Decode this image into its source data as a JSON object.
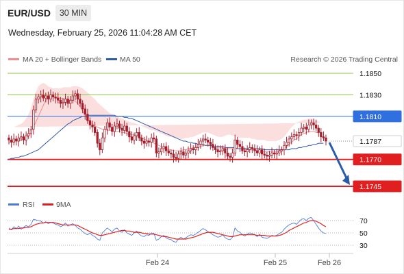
{
  "header": {
    "symbol": "EUR/USD",
    "timeframe": "30 MIN",
    "datetime": "Wednesday, February 25, 2026 11:04:28 AM CET"
  },
  "legend": {
    "ma20_label": "MA 20 + Bollinger Bands",
    "ma50_label": "MA 50",
    "research": "Research © 2026 Trading Central",
    "rsi_label": "RSI",
    "ma9_label": "9MA"
  },
  "colors": {
    "ma20": "#f28c8c",
    "ma50": "#2e5aa8",
    "bollinger_fill": "#fad4d4",
    "candle": "#a51c2a",
    "resistance": "#8bc34a",
    "pivot": "#2f6fe0",
    "support": "#e02020",
    "rsi": "#4a7ad8",
    "rsi_ma": "#e02020",
    "arrow": "#2b5aa8"
  },
  "chart_data": {
    "type": "candlestick",
    "instrument": "EUR/USD",
    "timeframe": "30 MIN",
    "price_levels": [
      {
        "label": "1.1850",
        "value": 1.185,
        "kind": "resistance"
      },
      {
        "label": "1.1830",
        "value": 1.183,
        "kind": "resistance"
      },
      {
        "label": "1.1810",
        "value": 1.181,
        "kind": "pivot"
      },
      {
        "label": "1.1787",
        "value": 1.1787,
        "kind": "last"
      },
      {
        "label": "1.1770",
        "value": 1.177,
        "kind": "support"
      },
      {
        "label": "1.1745",
        "value": 1.1745,
        "kind": "support"
      }
    ],
    "x_ticks": [
      "Feb 24",
      "Feb 25",
      "Feb 26"
    ],
    "close": [
      1.1788,
      1.1786,
      1.1789,
      1.1787,
      1.179,
      1.1791,
      1.1788,
      1.1792,
      1.1794,
      1.1798,
      1.1816,
      1.1826,
      1.1828,
      1.183,
      1.1827,
      1.1829,
      1.1826,
      1.183,
      1.1828,
      1.1827,
      1.1825,
      1.1822,
      1.1823,
      1.1826,
      1.1822,
      1.1825,
      1.1829,
      1.1831,
      1.1826,
      1.1822,
      1.1817,
      1.1812,
      1.1806,
      1.1802,
      1.18,
      1.1795,
      1.1785,
      1.1779,
      1.179,
      1.1798,
      1.1804,
      1.18,
      1.1796,
      1.1801,
      1.1803,
      1.1799,
      1.1797,
      1.1801,
      1.1796,
      1.1791,
      1.1788,
      1.1792,
      1.1795,
      1.179,
      1.1787,
      1.1785,
      1.1787,
      1.1786,
      1.179,
      1.1789,
      1.1776,
      1.1777,
      1.178,
      1.1782,
      1.1778,
      1.1776,
      1.1775,
      1.1772,
      1.1771,
      1.1775,
      1.1777,
      1.1774,
      1.1776,
      1.1778,
      1.178,
      1.1779,
      1.1781,
      1.1784,
      1.1787,
      1.1789,
      1.1788,
      1.1786,
      1.1784,
      1.1781,
      1.1779,
      1.1777,
      1.1778,
      1.178,
      1.1776,
      1.1773,
      1.1772,
      1.1776,
      1.1788,
      1.1784,
      1.1782,
      1.1778,
      1.1777,
      1.1779,
      1.1781,
      1.178,
      1.1778,
      1.1776,
      1.1779,
      1.1775,
      1.1774,
      1.1773,
      1.1774,
      1.1776,
      1.1775,
      1.1776,
      1.1778,
      1.1779,
      1.1783,
      1.1786,
      1.1789,
      1.1791,
      1.1793,
      1.1792,
      1.1795,
      1.1799,
      1.18,
      1.1798,
      1.1802,
      1.1804,
      1.1802,
      1.1799,
      1.1795,
      1.1791,
      1.179,
      1.1787
    ],
    "ma20": [
      1.1786,
      1.1786,
      1.1787,
      1.1787,
      1.1788,
      1.1788,
      1.1789,
      1.179,
      1.1792,
      1.1795,
      1.18,
      1.1805,
      1.181,
      1.1815,
      1.182,
      1.1825,
      1.1827,
      1.1828,
      1.1828,
      1.1828,
      1.1827,
      1.1827,
      1.1826,
      1.1826,
      1.1826,
      1.1825,
      1.1825,
      1.1824,
      1.1822,
      1.1819,
      1.1815,
      1.1811,
      1.1808,
      1.1805,
      1.1803,
      1.1801,
      1.18,
      1.1799,
      1.1798,
      1.1798,
      1.1797,
      1.1797,
      1.1797,
      1.1796,
      1.1796,
      1.1796,
      1.1795,
      1.1795,
      1.1794,
      1.1794,
      1.1793,
      1.1793,
      1.1792,
      1.1791,
      1.179,
      1.1789,
      1.1788,
      1.1787,
      1.1786,
      1.1785,
      1.1784,
      1.1783,
      1.1782,
      1.1781,
      1.178,
      1.1779,
      1.1779,
      1.1778,
      1.1778,
      1.1778,
      1.1778,
      1.1779,
      1.1779,
      1.178,
      1.178,
      1.1781,
      1.1781,
      1.1782,
      1.1782,
      1.1783,
      1.1783,
      1.1783,
      1.1783,
      1.1783,
      1.1782,
      1.1782,
      1.1781,
      1.1781,
      1.178,
      1.178,
      1.178,
      1.178,
      1.178,
      1.178,
      1.178,
      1.178,
      1.1779,
      1.1779,
      1.1779,
      1.1779,
      1.1779,
      1.1778,
      1.1778,
      1.1777,
      1.1777,
      1.1777,
      1.1777,
      1.1777,
      1.1777,
      1.1777,
      1.1778,
      1.1779,
      1.178,
      1.1782,
      1.1784,
      1.1786,
      1.1788,
      1.1789,
      1.1791,
      1.1793,
      1.1794,
      1.1795,
      1.1796,
      1.1796,
      1.1796,
      1.1795,
      1.1795
    ],
    "ma50": [
      1.177,
      1.1771,
      1.1771,
      1.1772,
      1.1772,
      1.1773,
      1.1773,
      1.1774,
      1.1775,
      1.1776,
      1.1777,
      1.1778,
      1.1779,
      1.1781,
      1.1783,
      1.1785,
      1.1787,
      1.1789,
      1.1791,
      1.1793,
      1.1795,
      1.1797,
      1.1799,
      1.1801,
      1.1803,
      1.1804,
      1.1806,
      1.1807,
      1.1808,
      1.1809,
      1.181,
      1.181,
      1.1811,
      1.1811,
      1.1811,
      1.1811,
      1.1811,
      1.1811,
      1.1811,
      1.1811,
      1.1811,
      1.1811,
      1.1811,
      1.1811,
      1.181,
      1.181,
      1.181,
      1.1809,
      1.1809,
      1.1808,
      1.1808,
      1.1807,
      1.1806,
      1.1805,
      1.1804,
      1.1803,
      1.1802,
      1.1801,
      1.18,
      1.1799,
      1.1798,
      1.1797,
      1.1796,
      1.1795,
      1.1794,
      1.1793,
      1.1792,
      1.1791,
      1.179,
      1.1789,
      1.1788,
      1.1787,
      1.1787,
      1.1786,
      1.1786,
      1.1785,
      1.1785,
      1.1784,
      1.1784,
      1.1784,
      1.1783,
      1.1783,
      1.1783,
      1.1782,
      1.1782,
      1.1782,
      1.1782,
      1.1782,
      1.1781,
      1.1781,
      1.1781,
      1.1781,
      1.1781,
      1.178,
      1.178,
      1.178,
      1.178,
      1.178,
      1.178,
      1.178,
      1.178,
      1.178,
      1.178,
      1.178,
      1.1779,
      1.1779,
      1.1779,
      1.1779,
      1.1779,
      1.1779,
      1.1779,
      1.1779,
      1.1779,
      1.1779,
      1.1779,
      1.178,
      1.178,
      1.178,
      1.1781,
      1.1781,
      1.1782,
      1.1782,
      1.1783,
      1.1783,
      1.1784,
      1.1784,
      1.1785,
      1.1785,
      1.1785
    ],
    "bollinger_upper": [
      1.18,
      1.18,
      1.18,
      1.1801,
      1.1802,
      1.1803,
      1.1805,
      1.1808,
      1.1812,
      1.1818,
      1.1826,
      1.1833,
      1.1838,
      1.184,
      1.1841,
      1.184,
      1.1838,
      1.1837,
      1.1836,
      1.1836,
      1.1836,
      1.1836,
      1.1837,
      1.1837,
      1.1837,
      1.1837,
      1.1838,
      1.1838,
      1.1838,
      1.1837,
      1.1836,
      1.1834,
      1.1832,
      1.183,
      1.1828,
      1.1826,
      1.1823,
      1.1821,
      1.1819,
      1.1817,
      1.1815,
      1.1813,
      1.1812,
      1.1811,
      1.181,
      1.1809,
      1.1808,
      1.1807,
      1.1806,
      1.1805,
      1.1804,
      1.1804,
      1.1803,
      1.1802,
      1.1801,
      1.18,
      1.1799,
      1.1798,
      1.1797,
      1.1797,
      1.1796,
      1.1795,
      1.1794,
      1.1793,
      1.1792,
      1.1791,
      1.1791,
      1.179,
      1.179,
      1.179,
      1.1789,
      1.1789,
      1.179,
      1.179,
      1.1791,
      1.1791,
      1.1792,
      1.1793,
      1.1794,
      1.1795,
      1.1795,
      1.1795,
      1.1794,
      1.1793,
      1.1792,
      1.1791,
      1.1791,
      1.1791,
      1.1792,
      1.1793,
      1.1793,
      1.1792,
      1.1792,
      1.1791,
      1.179,
      1.179,
      1.179,
      1.179,
      1.179,
      1.1789,
      1.1789,
      1.1788,
      1.1788,
      1.1788,
      1.1788,
      1.1787,
      1.1787,
      1.1787,
      1.1787,
      1.1787,
      1.1788,
      1.1789,
      1.1791,
      1.1794,
      1.1797,
      1.18,
      1.1802,
      1.1804,
      1.1805,
      1.1806,
      1.1807,
      1.1807,
      1.1808,
      1.1808,
      1.1807,
      1.1806,
      1.1805,
      1.1804
    ],
    "bollinger_lower": [
      1.1771,
      1.1771,
      1.1772,
      1.1772,
      1.1772,
      1.1772,
      1.1772,
      1.1772,
      1.1771,
      1.177,
      1.177,
      1.1771,
      1.1773,
      1.1776,
      1.1781,
      1.1786,
      1.1792,
      1.1798,
      1.1804,
      1.1808,
      1.1812,
      1.1815,
      1.1814,
      1.1813,
      1.1812,
      1.1811,
      1.1809,
      1.1806,
      1.1802,
      1.1797,
      1.1791,
      1.1786,
      1.1782,
      1.1779,
      1.1776,
      1.1774,
      1.1773,
      1.1773,
      1.1774,
      1.1775,
      1.1776,
      1.1777,
      1.1778,
      1.1779,
      1.178,
      1.178,
      1.178,
      1.178,
      1.178,
      1.178,
      1.1779,
      1.1778,
      1.1777,
      1.1776,
      1.1775,
      1.1774,
      1.1773,
      1.1772,
      1.1772,
      1.1771,
      1.1771,
      1.177,
      1.177,
      1.1769,
      1.1769,
      1.1768,
      1.1768,
      1.1768,
      1.1768,
      1.1768,
      1.1768,
      1.1769,
      1.1769,
      1.177,
      1.177,
      1.1771,
      1.1771,
      1.1772,
      1.1772,
      1.1772,
      1.1772,
      1.1772,
      1.1772,
      1.1772,
      1.1772,
      1.1772,
      1.1772,
      1.1771,
      1.177,
      1.1769,
      1.1769,
      1.1769,
      1.1769,
      1.1769,
      1.1769,
      1.177,
      1.177,
      1.177,
      1.177,
      1.177,
      1.177,
      1.1769,
      1.1769,
      1.1768,
      1.1768,
      1.1768,
      1.1768,
      1.1768,
      1.1768,
      1.1768,
      1.1768,
      1.1768,
      1.1768,
      1.1769,
      1.177,
      1.1771,
      1.1772,
      1.1773,
      1.1774,
      1.1776,
      1.1778,
      1.178,
      1.1781,
      1.1782,
      1.1783,
      1.1784,
      1.1785,
      1.1785
    ],
    "forecast": {
      "from": 1.1787,
      "to": 1.1745
    },
    "rsi": {
      "levels": [
        70,
        50,
        30
      ],
      "rsi": [
        58,
        55,
        60,
        57,
        61,
        56,
        59,
        62,
        60,
        64,
        72,
        71,
        70,
        69,
        66,
        68,
        65,
        67,
        66,
        64,
        63,
        60,
        62,
        66,
        61,
        63,
        65,
        62,
        58,
        56,
        52,
        49,
        47,
        50,
        46,
        44,
        40,
        38,
        50,
        54,
        58,
        55,
        52,
        56,
        58,
        53,
        51,
        55,
        50,
        48,
        46,
        50,
        53,
        48,
        45,
        44,
        47,
        46,
        50,
        49,
        38,
        40,
        44,
        46,
        42,
        40,
        39,
        36,
        35,
        40,
        43,
        40,
        42,
        45,
        47,
        46,
        48,
        51,
        54,
        57,
        55,
        52,
        50,
        47,
        45,
        43,
        44,
        47,
        42,
        40,
        39,
        43,
        58,
        53,
        51,
        47,
        45,
        48,
        50,
        49,
        47,
        44,
        48,
        43,
        42,
        41,
        43,
        46,
        45,
        46,
        49,
        51,
        56,
        60,
        63,
        65,
        66,
        64,
        68,
        72,
        73,
        70,
        74,
        75,
        70,
        64,
        58,
        53,
        50,
        49
      ],
      "ma9": [
        56,
        56,
        57,
        57,
        57,
        58,
        58,
        59,
        59,
        60,
        62,
        64,
        65,
        66,
        66,
        67,
        67,
        67,
        67,
        66,
        65,
        64,
        63,
        63,
        63,
        63,
        63,
        63,
        62,
        60,
        58,
        56,
        54,
        52,
        50,
        49,
        47,
        46,
        46,
        47,
        48,
        49,
        50,
        51,
        52,
        53,
        54,
        54,
        53,
        53,
        52,
        51,
        51,
        51,
        50,
        49,
        49,
        48,
        48,
        48,
        47,
        46,
        45,
        44,
        44,
        43,
        42,
        41,
        40,
        40,
        40,
        40,
        40,
        41,
        42,
        43,
        44,
        46,
        47,
        49,
        50,
        51,
        51,
        51,
        50,
        49,
        48,
        47,
        46,
        45,
        44,
        44,
        45,
        46,
        47,
        47,
        47,
        47,
        47,
        47,
        47,
        46,
        46,
        46,
        46,
        45,
        45,
        45,
        45,
        45,
        46,
        47,
        49,
        51,
        54,
        56,
        58,
        60,
        62,
        64,
        66,
        67,
        69,
        70,
        70,
        69,
        67,
        65,
        62,
        60
      ]
    }
  }
}
